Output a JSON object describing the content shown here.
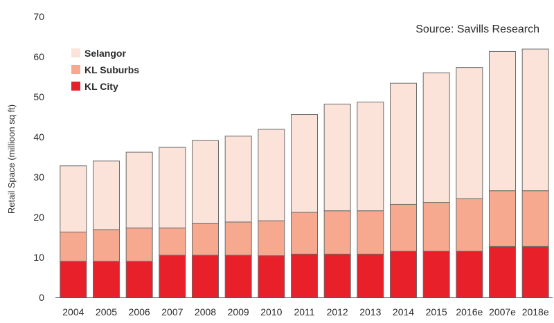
{
  "chart_data": {
    "type": "bar",
    "stacked": true,
    "title": "",
    "source": "Source: Savills Research",
    "xlabel": "",
    "ylabel": "Retail Space (millioon sq ft)",
    "ylim": [
      0,
      70
    ],
    "yticks": [
      0,
      10,
      20,
      30,
      40,
      50,
      60,
      70
    ],
    "categories": [
      "2004",
      "2005",
      "2006",
      "2007",
      "2008",
      "2009",
      "2010",
      "2011",
      "2012",
      "2013",
      "2014",
      "2015",
      "2016e",
      "2007e",
      "2018e"
    ],
    "series": [
      {
        "name": "KL City",
        "color": "#e8202a",
        "values": [
          9.0,
          9.0,
          9.0,
          10.5,
          10.5,
          10.5,
          10.4,
          10.8,
          10.8,
          10.8,
          11.5,
          11.5,
          11.5,
          12.7,
          12.7
        ]
      },
      {
        "name": "KL Suburbs",
        "color": "#f6a98e",
        "values": [
          7.3,
          7.9,
          8.3,
          6.8,
          7.9,
          8.3,
          8.7,
          10.4,
          10.8,
          10.8,
          11.7,
          12.2,
          13.1,
          13.9,
          13.9
        ]
      },
      {
        "name": "Selangor",
        "color": "#fce3d9",
        "values": [
          16.5,
          17.1,
          18.9,
          20.1,
          20.7,
          21.4,
          22.8,
          24.4,
          26.6,
          27.1,
          30.2,
          32.3,
          32.7,
          34.7,
          35.3
        ]
      }
    ],
    "legend": [
      "Selangor",
      "KL Suburbs",
      "KL City"
    ],
    "legend_position": "top-left",
    "grid": false
  }
}
